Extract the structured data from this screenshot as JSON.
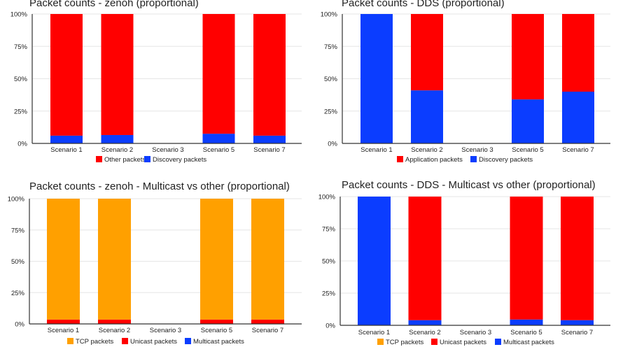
{
  "colors": {
    "red": "#ff0000",
    "blue": "#0b3dff",
    "orange": "#ffa000",
    "grid": "#e6e6e6",
    "axis": "#333333"
  },
  "chart_data": [
    {
      "type": "bar",
      "stacked": true,
      "title": "Packet counts - zenoh (proportional)",
      "categories": [
        "Scenario 1",
        "Scenario 2",
        "Scenario 3",
        "Scenario 5",
        "Scenario 7"
      ],
      "ytick_labels": [
        "100%",
        "75%",
        "50%",
        "25%",
        "0%"
      ],
      "ylim": [
        0,
        100
      ],
      "series": [
        {
          "name": "Discovery packets",
          "color": "#0b3dff",
          "values": [
            6,
            6.5,
            0,
            7.5,
            6
          ]
        },
        {
          "name": "Other packets",
          "color": "#ff0000",
          "values": [
            94,
            93.5,
            0,
            92.5,
            94
          ]
        }
      ],
      "legend": [
        "Other packets",
        "Discovery packets"
      ]
    },
    {
      "type": "bar",
      "stacked": true,
      "title": "Packet counts - DDS (proportional)",
      "categories": [
        "Scenario 1",
        "Scenario 2",
        "Scenario 3",
        "Scenario 5",
        "Scenario 7"
      ],
      "ytick_labels": [
        "100%",
        "75%",
        "50%",
        "25%",
        "0%"
      ],
      "ylim": [
        0,
        100
      ],
      "series": [
        {
          "name": "Discovery packets",
          "color": "#0b3dff",
          "values": [
            100,
            41,
            0,
            34,
            40
          ]
        },
        {
          "name": "Application packets",
          "color": "#ff0000",
          "values": [
            0,
            59,
            0,
            66,
            60
          ]
        }
      ],
      "legend": [
        "Application packets",
        "Discovery packets"
      ]
    },
    {
      "type": "bar",
      "stacked": true,
      "title": "Packet counts - zenoh - Multicast vs other (proportional)",
      "categories": [
        "Scenario 1",
        "Scenario 2",
        "Scenario 3",
        "Scenario 5",
        "Scenario 7"
      ],
      "ytick_labels": [
        "100%",
        "75%",
        "50%",
        "25%",
        "0%"
      ],
      "ylim": [
        0,
        100
      ],
      "series": [
        {
          "name": "Multicast packets",
          "color": "#0b3dff",
          "values": [
            0,
            0,
            0,
            0,
            0
          ]
        },
        {
          "name": "Unicast packets",
          "color": "#ff0000",
          "values": [
            3.5,
            3.5,
            0,
            3.5,
            3.5
          ]
        },
        {
          "name": "TCP packets",
          "color": "#ffa000",
          "values": [
            96.5,
            96.5,
            0,
            96.5,
            96.5
          ]
        }
      ],
      "legend": [
        "TCP packets",
        "Unicast packets",
        "Multicast packets"
      ]
    },
    {
      "type": "bar",
      "stacked": true,
      "title": "Packet counts - DDS - Multicast vs other (proportional)",
      "categories": [
        "Scenario 1",
        "Scenario 2",
        "Scenario 3",
        "Scenario 5",
        "Scenario 7"
      ],
      "ytick_labels": [
        "100%",
        "75%",
        "50%",
        "25%",
        "0%"
      ],
      "ylim": [
        0,
        100
      ],
      "series": [
        {
          "name": "Multicast packets",
          "color": "#0b3dff",
          "values": [
            100,
            4,
            0,
            4.5,
            4
          ]
        },
        {
          "name": "Unicast packets",
          "color": "#ff0000",
          "values": [
            0,
            96,
            0,
            95.5,
            96
          ]
        },
        {
          "name": "TCP packets",
          "color": "#ffa000",
          "values": [
            0,
            0,
            0,
            0,
            0
          ]
        }
      ],
      "legend": [
        "TCP packets",
        "Unicast packets",
        "Multicast packets"
      ]
    }
  ]
}
